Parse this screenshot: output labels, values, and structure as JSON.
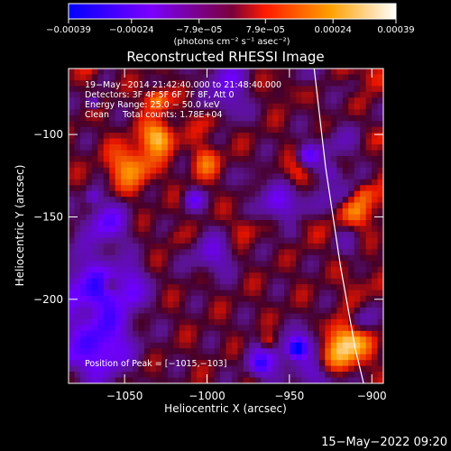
{
  "chart_data": {
    "type": "heatmap",
    "title": "Reconstructed RHESSI Image",
    "xlabel": "Heliocentric X (arcsec)",
    "ylabel": "Heliocentric Y (arcsec)",
    "xlim": [
      -1084,
      -893
    ],
    "ylim": [
      -251,
      -60
    ],
    "x_ticks": [
      -1050,
      -1000,
      -950,
      -900
    ],
    "x_tick_labels": [
      "−1050",
      "−1000",
      "−950",
      "−900"
    ],
    "y_ticks": [
      -100,
      -150,
      -200
    ],
    "y_tick_labels": [
      "−100",
      "−150",
      "−200"
    ],
    "colorbar": {
      "ticks": [
        -0.00039,
        -0.00024,
        -7.9e-05,
        7.9e-05,
        0.00024,
        0.00039
      ],
      "tick_labels": [
        "−0.00039",
        "−0.00024",
        "−7.9e−05",
        "7.9e−05",
        "0.00024",
        "0.00039"
      ],
      "unit_label": "(photons cm⁻² s⁻¹ asec⁻²)",
      "colors": [
        "#0000ff",
        "#8000ff",
        "#ff0000",
        "#ffa500",
        "#ffffff"
      ]
    },
    "annotations": [
      "19−May−2014 21:42:40.000 to 21:48:40.000",
      "Detectors: 3F 4F 5F 6F 7F 8F, Att 0",
      "Energy Range: 25.0 − 50.0 keV",
      "Clean     Total counts: 1.78E+04"
    ],
    "peak_label": "Position of Peak = [−1015,−103]",
    "peak": [
      -1015,
      -103
    ],
    "limb_curve": [
      [
        -935,
        -60
      ],
      [
        -928,
        -120
      ],
      [
        -919,
        -180
      ],
      [
        -910,
        -230
      ],
      [
        -905,
        -251
      ]
    ],
    "grid": false
  },
  "timestamp": "15−May−2022 09:20"
}
